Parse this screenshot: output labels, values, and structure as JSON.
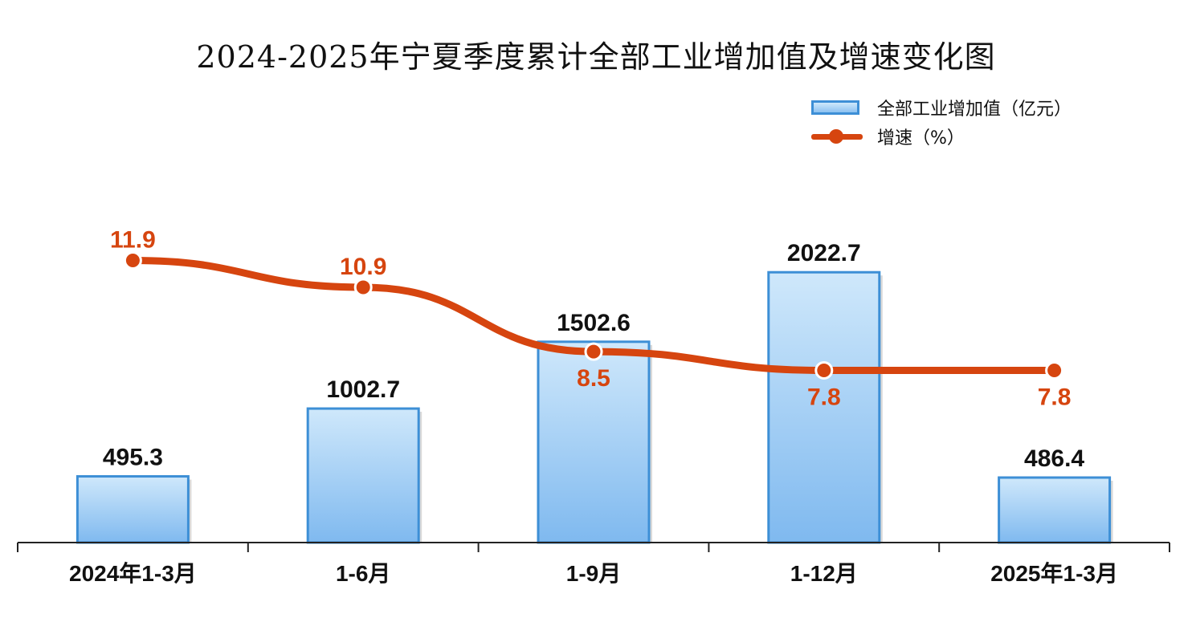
{
  "chart_data": {
    "type": "bar",
    "title": "2024-2025年宁夏季度累计全部工业增加值及增速变化图",
    "categories": [
      "2024年1-3月",
      "1-6月",
      "1-9月",
      "1-12月",
      "2025年1-3月"
    ],
    "series": [
      {
        "name": "全部工业增加值（亿元）",
        "type": "bar",
        "values": [
          495.3,
          1002.7,
          1502.6,
          2022.7,
          486.4
        ],
        "color": "#3d8fd6"
      },
      {
        "name": "增速（%）",
        "type": "line",
        "values": [
          11.9,
          10.9,
          8.5,
          7.8,
          7.8
        ],
        "color": "#d6450f"
      }
    ],
    "legend_position": "top-right",
    "grid": false
  }
}
